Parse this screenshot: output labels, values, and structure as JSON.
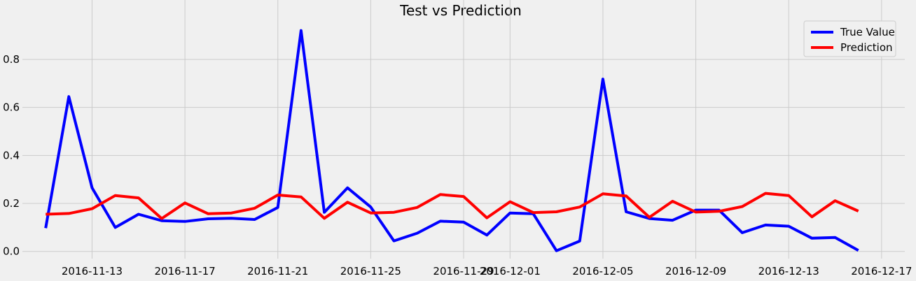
{
  "chart_data": {
    "type": "line",
    "title": "Test vs Prediction",
    "xlabel": "",
    "ylabel": "",
    "x": [
      "2016-11-11",
      "2016-11-12",
      "2016-11-13",
      "2016-11-14",
      "2016-11-15",
      "2016-11-16",
      "2016-11-17",
      "2016-11-18",
      "2016-11-19",
      "2016-11-20",
      "2016-11-21",
      "2016-11-22",
      "2016-11-23",
      "2016-11-24",
      "2016-11-25",
      "2016-11-26",
      "2016-11-27",
      "2016-11-28",
      "2016-11-29",
      "2016-11-30",
      "2016-12-01",
      "2016-12-02",
      "2016-12-03",
      "2016-12-04",
      "2016-12-05",
      "2016-12-06",
      "2016-12-07",
      "2016-12-08",
      "2016-12-09",
      "2016-12-10",
      "2016-12-11",
      "2016-12-12",
      "2016-12-13",
      "2016-12-14",
      "2016-12-15",
      "2016-12-16"
    ],
    "series": [
      {
        "name": "True Value",
        "color": "#0000ff",
        "values": [
          0.097,
          0.645,
          0.265,
          0.1,
          0.155,
          0.128,
          0.125,
          0.136,
          0.138,
          0.133,
          0.183,
          0.92,
          0.163,
          0.265,
          0.185,
          0.044,
          0.076,
          0.126,
          0.122,
          0.068,
          0.16,
          0.157,
          0.003,
          0.043,
          0.718,
          0.165,
          0.137,
          0.13,
          0.172,
          0.172,
          0.078,
          0.11,
          0.105,
          0.055,
          0.058,
          0.004
        ]
      },
      {
        "name": "Prediction",
        "color": "#ff0000",
        "values": [
          0.155,
          0.158,
          0.178,
          0.233,
          0.223,
          0.137,
          0.202,
          0.157,
          0.16,
          0.18,
          0.235,
          0.227,
          0.138,
          0.205,
          0.16,
          0.163,
          0.183,
          0.237,
          0.229,
          0.14,
          0.207,
          0.162,
          0.165,
          0.185,
          0.24,
          0.231,
          0.142,
          0.209,
          0.164,
          0.167,
          0.187,
          0.242,
          0.233,
          0.144,
          0.211,
          0.168
        ]
      }
    ],
    "xticks": [
      "2016-11-13",
      "2016-11-17",
      "2016-11-21",
      "2016-11-25",
      "2016-11-29",
      "2016-12-01",
      "2016-12-05",
      "2016-12-09",
      "2016-12-13",
      "2016-12-17"
    ],
    "xlim": [
      "2016-11-10",
      "2016-12-18"
    ],
    "yticks": [
      "0.0",
      "0.2",
      "0.4",
      "0.6",
      "0.8"
    ],
    "ylim": [
      -0.03,
      0.96
    ],
    "grid": true,
    "legend": "top-right"
  }
}
